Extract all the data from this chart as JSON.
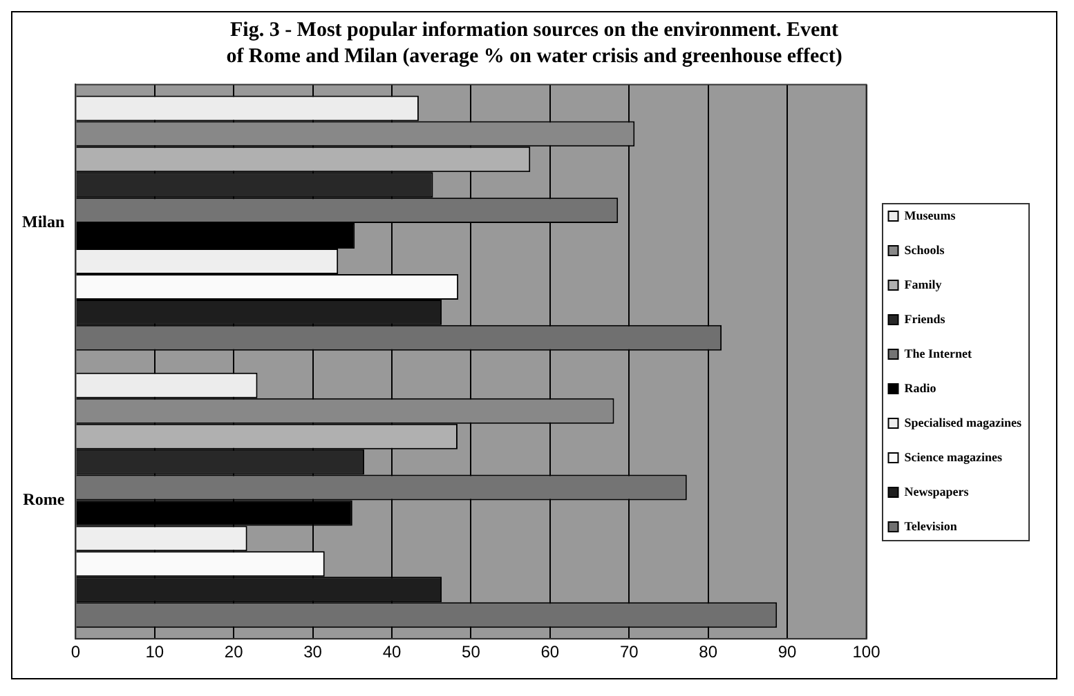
{
  "chart_data": {
    "type": "bar",
    "orientation": "horizontal",
    "title": "Fig. 3 - Most popular information sources on the environment. Event of Rome and Milan (average % on water crisis and greenhouse effect)",
    "categories": [
      "Milan",
      "Rome"
    ],
    "series": [
      {
        "name": "Museums",
        "color": "#ececec",
        "values": [
          43.4,
          23.0
        ]
      },
      {
        "name": "Schools",
        "color": "#888888",
        "values": [
          70.7,
          68.1
        ]
      },
      {
        "name": "Family",
        "color": "#b0b0b0",
        "values": [
          57.5,
          48.3
        ]
      },
      {
        "name": "Friends",
        "color": "#282828",
        "values": [
          45.2,
          36.5
        ]
      },
      {
        "name": "The Internet",
        "color": "#747474",
        "values": [
          68.6,
          77.3
        ]
      },
      {
        "name": "Radio",
        "color": "#000000",
        "values": [
          35.3,
          35.0
        ]
      },
      {
        "name": "Specialised magazines",
        "color": "#eeeeee",
        "values": [
          33.2,
          21.7
        ]
      },
      {
        "name": "Science magazines",
        "color": "#fafafa",
        "values": [
          48.4,
          31.5
        ]
      },
      {
        "name": "Newspapers",
        "color": "#1e1e1e",
        "values": [
          46.3,
          46.3
        ]
      },
      {
        "name": "Television",
        "color": "#707070",
        "values": [
          81.7,
          88.7
        ]
      }
    ],
    "xlim": [
      0,
      100
    ],
    "xticks": [
      0,
      10,
      20,
      30,
      40,
      50,
      60,
      70,
      80,
      90,
      100
    ],
    "grid": "x",
    "legend": "right"
  }
}
